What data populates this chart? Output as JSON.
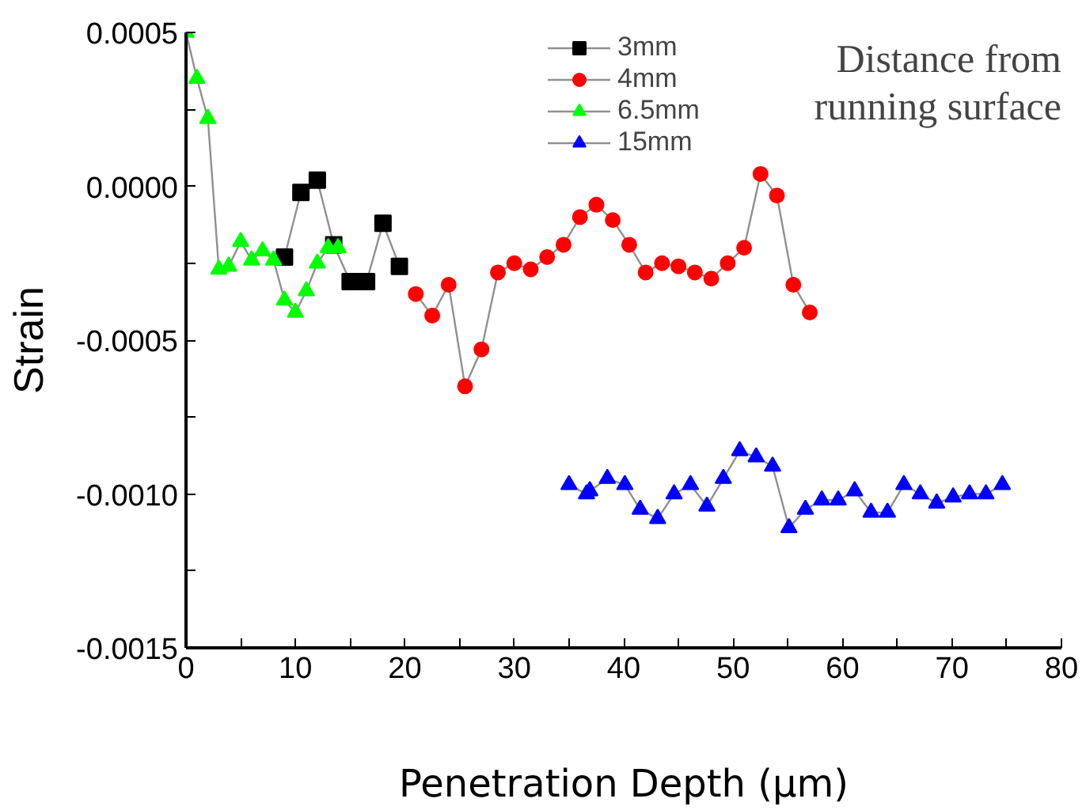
{
  "chart_data": {
    "type": "line",
    "xlabel": "Penetration Depth (µm)",
    "ylabel": "Strain",
    "annotations": [
      "Distance from\nrunning surface"
    ],
    "xlim": [
      0,
      80
    ],
    "ylim": [
      -0.0015,
      0.0005
    ],
    "xticks": [
      0,
      {
        "value": 5,
        "label": null
      },
      10,
      {
        "value": 15,
        "label": null
      },
      20,
      {
        "value": 25,
        "label": null
      },
      30,
      {
        "value": 35,
        "label": null
      },
      40,
      {
        "value": 45,
        "label": null
      },
      50,
      {
        "value": 55,
        "label": null
      },
      60,
      {
        "value": 65,
        "label": null
      },
      70,
      {
        "value": 75,
        "label": null
      },
      80
    ],
    "yticks": [
      {
        "value": -0.0015,
        "label": "-0.0015"
      },
      {
        "value": -0.00125,
        "label": null
      },
      {
        "value": -0.001,
        "label": "-0.0010"
      },
      {
        "value": -0.00075,
        "label": null
      },
      {
        "value": -0.0005,
        "label": "-0.0005"
      },
      {
        "value": -0.00025,
        "label": null
      },
      {
        "value": 0,
        "label": "0.0000"
      },
      {
        "value": 0.00025,
        "label": null
      },
      {
        "value": 0.0005,
        "label": "0.0005"
      }
    ],
    "grid": false,
    "legend": "top",
    "series": [
      {
        "name": "3mm",
        "color": "#000000",
        "marker": "square",
        "x": [
          9.0,
          10.5,
          12.0,
          13.5,
          15.0,
          16.5,
          18.0,
          19.5
        ],
        "values": [
          -0.00023,
          -2e-05,
          2e-05,
          -0.00019,
          -0.00031,
          -0.00031,
          -0.00012,
          -0.00026
        ]
      },
      {
        "name": "4mm",
        "color": "#ff0000",
        "marker": "circle",
        "x": [
          21.0,
          22.5,
          24.0,
          25.5,
          27.0,
          28.5,
          30.0,
          31.5,
          33.0,
          34.5,
          36.0,
          37.5,
          39.0,
          40.5,
          42.0,
          43.5,
          45.0,
          46.5,
          48.0,
          49.5,
          51.0,
          52.5,
          54.0,
          55.5,
          57.0
        ],
        "values": [
          -0.00035,
          -0.00042,
          -0.00032,
          -0.00065,
          -0.00053,
          -0.00028,
          -0.00025,
          -0.00027,
          -0.00023,
          -0.00019,
          -0.0001,
          -6e-05,
          -0.00011,
          -0.00019,
          -0.00028,
          -0.00025,
          -0.00026,
          -0.00028,
          -0.0003,
          -0.00025,
          -0.0002,
          4e-05,
          -3e-05,
          -0.00032,
          -0.00041
        ]
      },
      {
        "name": "6.5mm",
        "color": "#00ff00",
        "marker": "triangle",
        "x": [
          0,
          1.0,
          2.0,
          3.0,
          3.9,
          5.0,
          6.0,
          7.0,
          8.0,
          9.0,
          10.0,
          11.0,
          12.0,
          13.0,
          13.9
        ],
        "values": [
          0.0005,
          0.00035,
          0.00022,
          -0.00027,
          -0.00026,
          -0.00018,
          -0.00024,
          -0.00021,
          -0.00024,
          -0.00037,
          -0.00041,
          -0.00034,
          -0.00025,
          -0.0002,
          -0.0002
        ]
      },
      {
        "name": "15mm",
        "color": "#0000ff",
        "marker": "triangle",
        "x": [
          35.0,
          36.6,
          36.9,
          38.5,
          40.1,
          41.5,
          43.1,
          44.6,
          46.1,
          47.6,
          49.1,
          50.6,
          52.1,
          53.6,
          55.1,
          56.6,
          58.1,
          59.6,
          61.1,
          62.6,
          64.1,
          65.6,
          67.1,
          68.6,
          70.1,
          71.6,
          73.1,
          74.6
        ],
        "values": [
          -0.00097,
          -0.001,
          -0.00099,
          -0.00095,
          -0.00097,
          -0.00105,
          -0.00108,
          -0.001,
          -0.00097,
          -0.00104,
          -0.00095,
          -0.00086,
          -0.00088,
          -0.00091,
          -0.00111,
          -0.00105,
          -0.00102,
          -0.00102,
          -0.00099,
          -0.00106,
          -0.00106,
          -0.00097,
          -0.001,
          -0.00103,
          -0.00101,
          -0.001,
          -0.001,
          -0.00097
        ]
      }
    ]
  }
}
